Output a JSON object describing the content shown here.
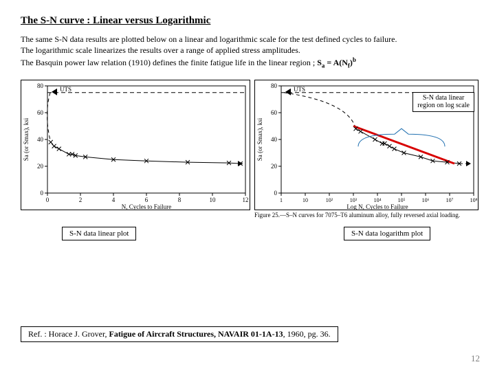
{
  "title": "The S-N curve : Linear versus Logarithmic",
  "intro": {
    "line1": "The same S-N data results are plotted below on a linear and logarithmic scale for the test defined cycles to failure.",
    "line2": "The logarithmic scale linearizes the results over a range of applied stress amplitudes.",
    "line3_prefix": "The Basquin power law relation (1910) defines the finite fatigue life in the linear region  ;  ",
    "eq_lhs": "S",
    "eq_lhs_sub": "a",
    "eq_mid": " = A(N",
    "eq_mid_sub": "f",
    "eq_rhs": ")",
    "eq_rhs_sup": "b"
  },
  "left_chart": {
    "type": "scatter-line",
    "uts_label": "UTS",
    "ylabel": "Sa (or Smax), ksi",
    "xlabel": "N, Cycles to Failure",
    "ylim": [
      0,
      80
    ],
    "yticks": [
      0,
      20,
      40,
      60,
      80
    ],
    "xlim": [
      0,
      12
    ],
    "xticks": [
      0,
      2,
      4,
      6,
      8,
      10,
      12
    ],
    "points": [
      {
        "x": 0.2,
        "y": 38
      },
      {
        "x": 0.4,
        "y": 35
      },
      {
        "x": 0.7,
        "y": 33
      },
      {
        "x": 1.3,
        "y": 29
      },
      {
        "x": 1.5,
        "y": 29
      },
      {
        "x": 1.7,
        "y": 28
      },
      {
        "x": 2.3,
        "y": 27
      },
      {
        "x": 4.0,
        "y": 25
      },
      {
        "x": 6.0,
        "y": 24
      },
      {
        "x": 8.5,
        "y": 23
      },
      {
        "x": 11.0,
        "y": 22.5
      },
      {
        "x": 11.7,
        "y": 22
      }
    ],
    "curve_color": "#000000",
    "marker": "x",
    "marker_color": "#000000",
    "dash_y": 75,
    "below_label": "S-N data linear plot"
  },
  "right_chart": {
    "type": "scatter-line-log",
    "uts_label": "UTS",
    "ylabel": "Sa (or Smax), ksi",
    "xlabel": "Log N, Cycles to Failure",
    "ylim": [
      0,
      80
    ],
    "yticks": [
      0,
      20,
      40,
      60,
      80
    ],
    "xlim": [
      0,
      8
    ],
    "xticks_labels": [
      "1",
      "10",
      "10²",
      "10³",
      "10⁴",
      "10⁵",
      "10⁶",
      "10⁷",
      "10⁸"
    ],
    "points": [
      {
        "x": 3.1,
        "y": 48
      },
      {
        "x": 3.3,
        "y": 46
      },
      {
        "x": 3.9,
        "y": 40
      },
      {
        "x": 4.2,
        "y": 37
      },
      {
        "x": 4.3,
        "y": 37
      },
      {
        "x": 4.5,
        "y": 35
      },
      {
        "x": 4.7,
        "y": 33
      },
      {
        "x": 5.1,
        "y": 30
      },
      {
        "x": 5.8,
        "y": 27
      },
      {
        "x": 6.3,
        "y": 24
      },
      {
        "x": 6.9,
        "y": 23
      },
      {
        "x": 7.4,
        "y": 22
      }
    ],
    "red_line": {
      "x1": 3.0,
      "y1": 50,
      "x2": 7.2,
      "y2": 22,
      "color": "#d80000",
      "width": 3
    },
    "curve_color": "#000000",
    "dash_y": 75,
    "callout_text1": "S-N data linear",
    "callout_text2": "region on log scale",
    "bracket_color": "#1f6fb0",
    "caption": "Figure 25.—S–N curves for 7075–T6 aluminum alloy, fully reversed axial loading.",
    "below_label": "S-N data logarithm plot"
  },
  "reference": "Ref. : Horace J. Grover, Fatigue of Aircraft Structures, NAVAIR 01-1A-13, 1960, pg. 36.",
  "page_number": "12",
  "colors": {
    "background": "#ffffff",
    "text": "#000000",
    "page_num": "#7f7f7f"
  }
}
